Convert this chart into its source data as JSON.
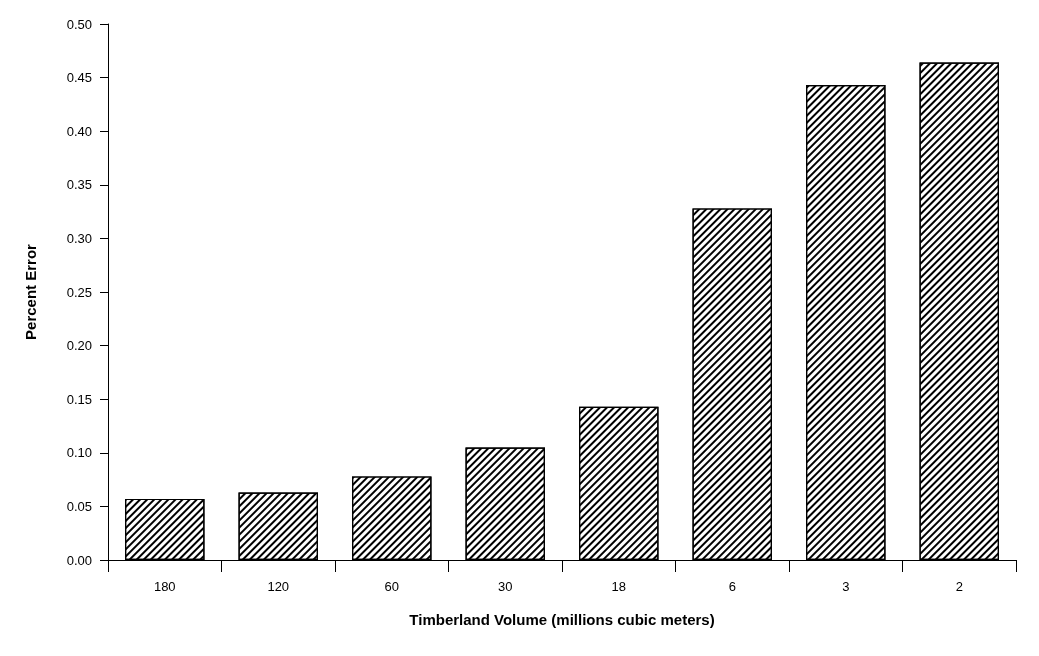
{
  "chart_data": {
    "type": "bar",
    "xlabel": "Timberland Volume (millions cubic meters)",
    "ylabel": "Percent Error",
    "categories": [
      "180",
      "120",
      "60",
      "30",
      "18",
      "6",
      "3",
      "2"
    ],
    "values": [
      0.057,
      0.063,
      0.078,
      0.105,
      0.143,
      0.328,
      0.443,
      0.464
    ],
    "color": "#000000",
    "ylim": [
      0,
      0.5
    ],
    "yticks": [
      {
        "value": 0,
        "label": "0.00"
      },
      {
        "value": 0.05,
        "label": "0.05"
      },
      {
        "value": 0.1,
        "label": "0.10"
      },
      {
        "value": 0.15,
        "label": "0.15"
      },
      {
        "value": 0.2,
        "label": "0.20"
      },
      {
        "value": 0.25,
        "label": "0.25"
      },
      {
        "value": 0.3,
        "label": "0.30"
      },
      {
        "value": 0.35,
        "label": "0.35"
      },
      {
        "value": 0.4,
        "label": "0.40"
      },
      {
        "value": 0.45,
        "label": "0.45"
      },
      {
        "value": 0.5,
        "label": "0.50"
      }
    ],
    "grid": false
  }
}
